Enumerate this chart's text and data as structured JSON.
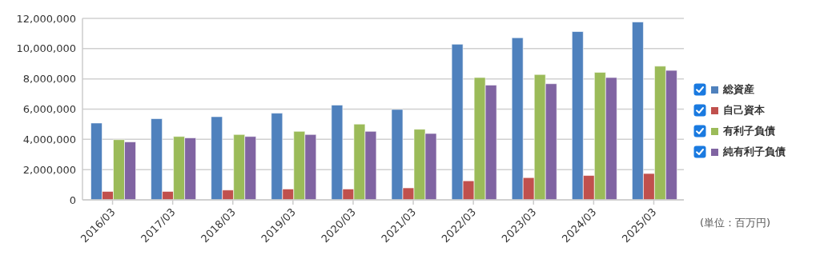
{
  "chart_data": {
    "type": "bar",
    "categories": [
      "2016/03",
      "2017/03",
      "2018/03",
      "2019/03",
      "2020/03",
      "2021/03",
      "2022/03",
      "2023/03",
      "2024/03",
      "2025/03"
    ],
    "series": [
      {
        "name": "総資産",
        "color": "#4f81bd",
        "values": [
          5080000,
          5370000,
          5500000,
          5730000,
          6270000,
          5980000,
          10290000,
          10720000,
          11130000,
          11760000
        ]
      },
      {
        "name": "自己資本",
        "color": "#c0504d",
        "values": [
          560000,
          560000,
          650000,
          720000,
          720000,
          790000,
          1260000,
          1470000,
          1610000,
          1740000
        ]
      },
      {
        "name": "有利子負債",
        "color": "#9bbb59",
        "values": [
          3980000,
          4190000,
          4320000,
          4530000,
          5010000,
          4670000,
          8090000,
          8290000,
          8430000,
          8840000
        ]
      },
      {
        "name": "純有利子負債",
        "color": "#8064a2",
        "values": [
          3830000,
          4100000,
          4190000,
          4320000,
          4530000,
          4390000,
          7590000,
          7680000,
          8090000,
          8560000
        ]
      }
    ],
    "ylim": [
      0,
      12000000
    ],
    "yticks": [
      0,
      {
        "value": 2000000,
        "label": "2,000,000"
      },
      {
        "value": 4000000,
        "label": "4,000,000"
      },
      {
        "value": 6000000,
        "label": "6,000,000"
      },
      {
        "value": 8000000,
        "label": "8,000,000"
      },
      {
        "value": 10000000,
        "label": "10,000,000"
      },
      {
        "value": 12000000,
        "label": "12,000,000"
      }
    ],
    "grid": "y",
    "legend": "right",
    "annotations": [
      "(単位：百万円)"
    ]
  }
}
